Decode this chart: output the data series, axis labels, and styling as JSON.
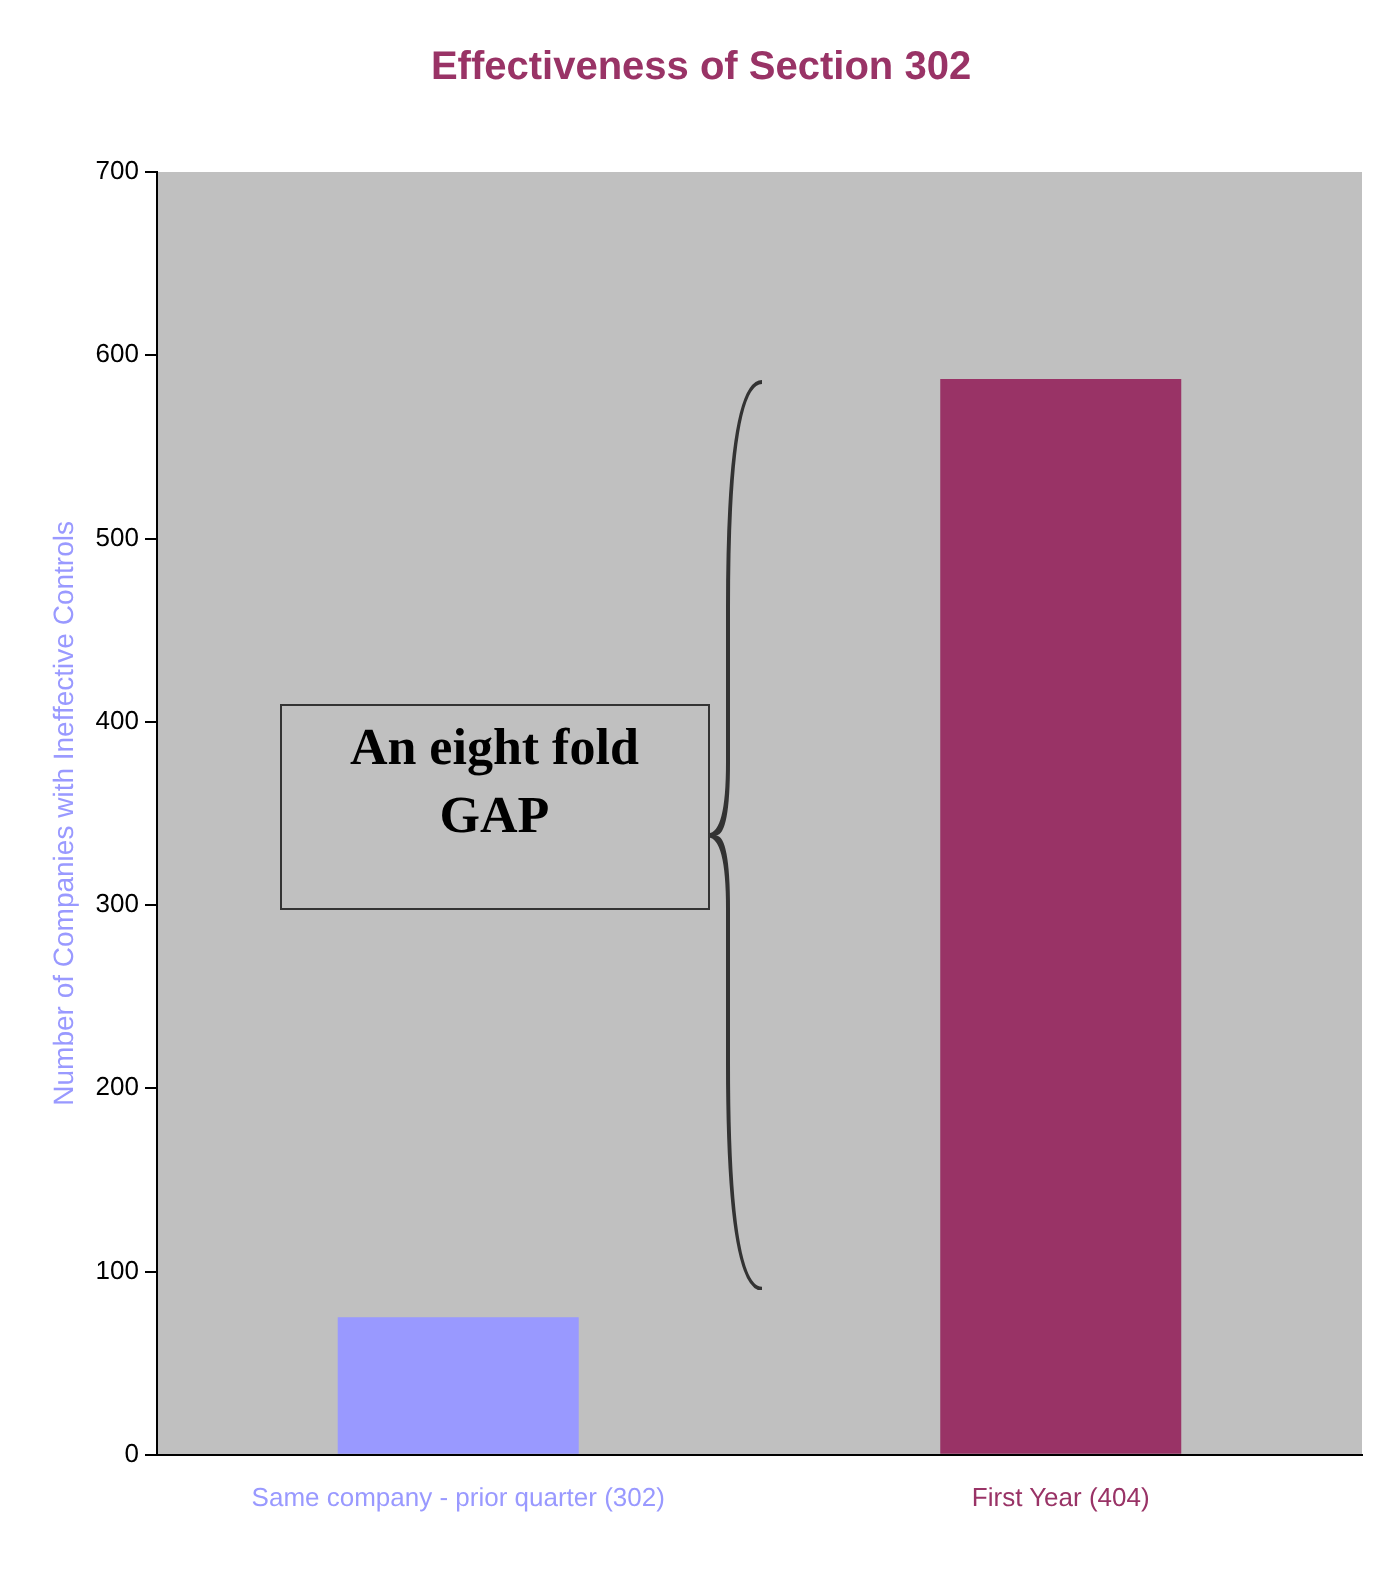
{
  "chart_data": {
    "type": "bar",
    "title": "Effectiveness of Section 302",
    "ylabel": "Number of Companies with Ineffective Controls",
    "categories": [
      "Same company - prior quarter (302)",
      "First Year (404)"
    ],
    "values": [
      75,
      587
    ],
    "colors": [
      "#9999ff",
      "#993366"
    ],
    "ylim": [
      0,
      700
    ],
    "yticks": [
      0,
      100,
      200,
      300,
      400,
      500,
      600,
      700
    ],
    "grid": false,
    "legend": false,
    "annotations": [
      "An eight fold GAP"
    ]
  }
}
